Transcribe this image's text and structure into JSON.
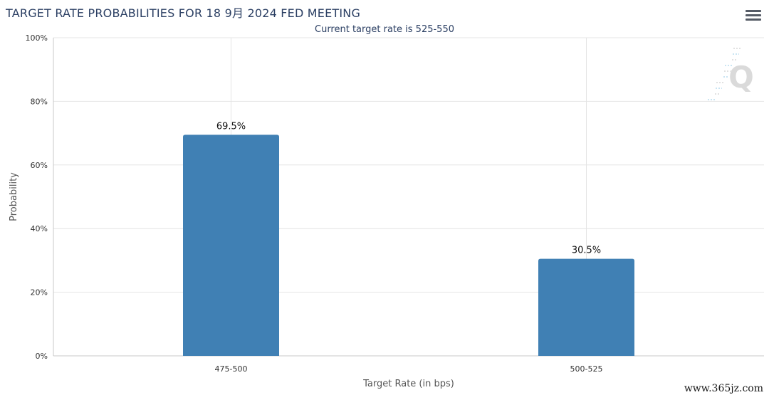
{
  "header": {
    "title": "TARGET RATE PROBABILITIES FOR 18 9月 2024 FED MEETING",
    "menu_icon": "hamburger-menu-icon"
  },
  "watermark_text": "www.365jz.com",
  "logo_letter": "Q",
  "colors": {
    "bar": "#4080b4",
    "grid": "#e4e4e4",
    "axis": "#c8c8c8",
    "title": "#2b3f63",
    "label": "#555555"
  },
  "chart_data": {
    "type": "bar",
    "title": "TARGET RATE PROBABILITIES FOR 18 9月 2024 FED MEETING",
    "subtitle": "Current target rate is 525-550",
    "xlabel": "Target Rate (in bps)",
    "ylabel": "Probability",
    "categories": [
      "475-500",
      "500-525"
    ],
    "values": [
      69.5,
      30.5
    ],
    "data_labels": [
      "69.5%",
      "30.5%"
    ],
    "ylim": [
      0,
      100
    ],
    "yticks": [
      0,
      20,
      40,
      60,
      80,
      100
    ],
    "ytick_labels": [
      "0%",
      "20%",
      "40%",
      "60%",
      "80%",
      "100%"
    ],
    "grid": true,
    "legend": "none"
  }
}
